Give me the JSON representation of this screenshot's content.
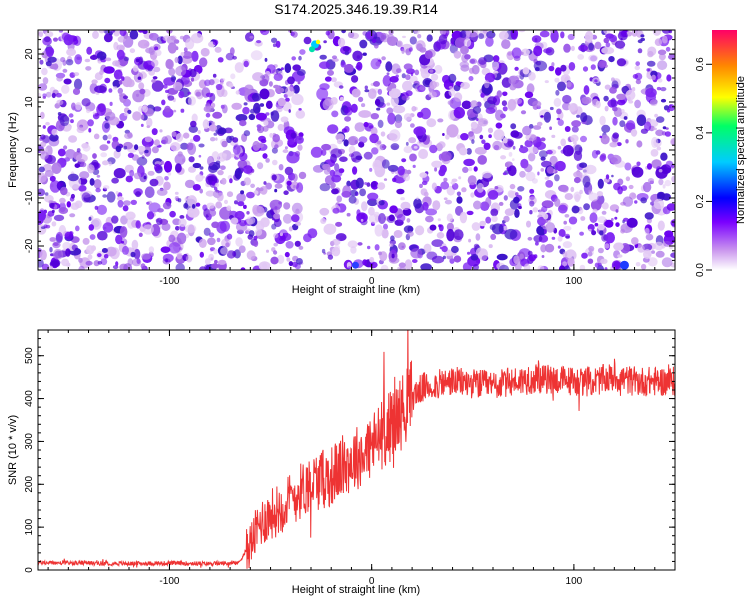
{
  "title": "S174.2025.346.19.39.R14",
  "spectrogram": {
    "chart_data": {
      "type": "heatmap",
      "xlabel": "Height of straight line (km)",
      "ylabel": "Frequency (Hz)",
      "xlim": [
        -165,
        150
      ],
      "ylim": [
        -25,
        25
      ],
      "x_ticks": [
        -100,
        0,
        100
      ],
      "y_ticks": [
        -20,
        -10,
        0,
        10,
        20
      ],
      "colorbar": {
        "label": "Normalized spectral amplitude",
        "range": [
          0.0,
          0.7
        ],
        "ticks": [
          "0.0",
          "0.2",
          "0.4",
          "0.6"
        ],
        "colors": [
          "#ffffff",
          "#cc99ee",
          "#7a00ff",
          "#0000ff",
          "#00ccff",
          "#00ff66",
          "#ffff00",
          "#ff8800",
          "#ff0066"
        ]
      },
      "notes": "Speckled noise field; vertical quiet band near x = -28 km; bright spots near x = -28 km, f = 22 Hz"
    }
  },
  "snr": {
    "chart_data": {
      "type": "line",
      "xlabel": "Height of straight line (km)",
      "ylabel": "SNR (10 * v/v)",
      "xlim": [
        -165,
        150
      ],
      "ylim": [
        0,
        560
      ],
      "x_ticks": [
        -100,
        0,
        100
      ],
      "y_ticks": [
        0,
        100,
        200,
        300,
        400,
        500
      ],
      "color": "#ee3333",
      "x": [
        -165,
        -140,
        -120,
        -100,
        -80,
        -66,
        -60,
        -55,
        -50,
        -45,
        -40,
        -35,
        -30,
        -25,
        -20,
        -15,
        -10,
        -5,
        0,
        5,
        10,
        15,
        20,
        25,
        30,
        40,
        50,
        60,
        70,
        80,
        90,
        100,
        110,
        120,
        130,
        140,
        150
      ],
      "y": [
        17,
        16,
        15,
        16,
        15,
        16,
        60,
        110,
        130,
        145,
        165,
        185,
        205,
        210,
        220,
        240,
        255,
        270,
        290,
        315,
        340,
        370,
        405,
        425,
        430,
        440,
        435,
        430,
        440,
        445,
        445,
        440,
        440,
        450,
        440,
        440,
        440
      ]
    }
  }
}
